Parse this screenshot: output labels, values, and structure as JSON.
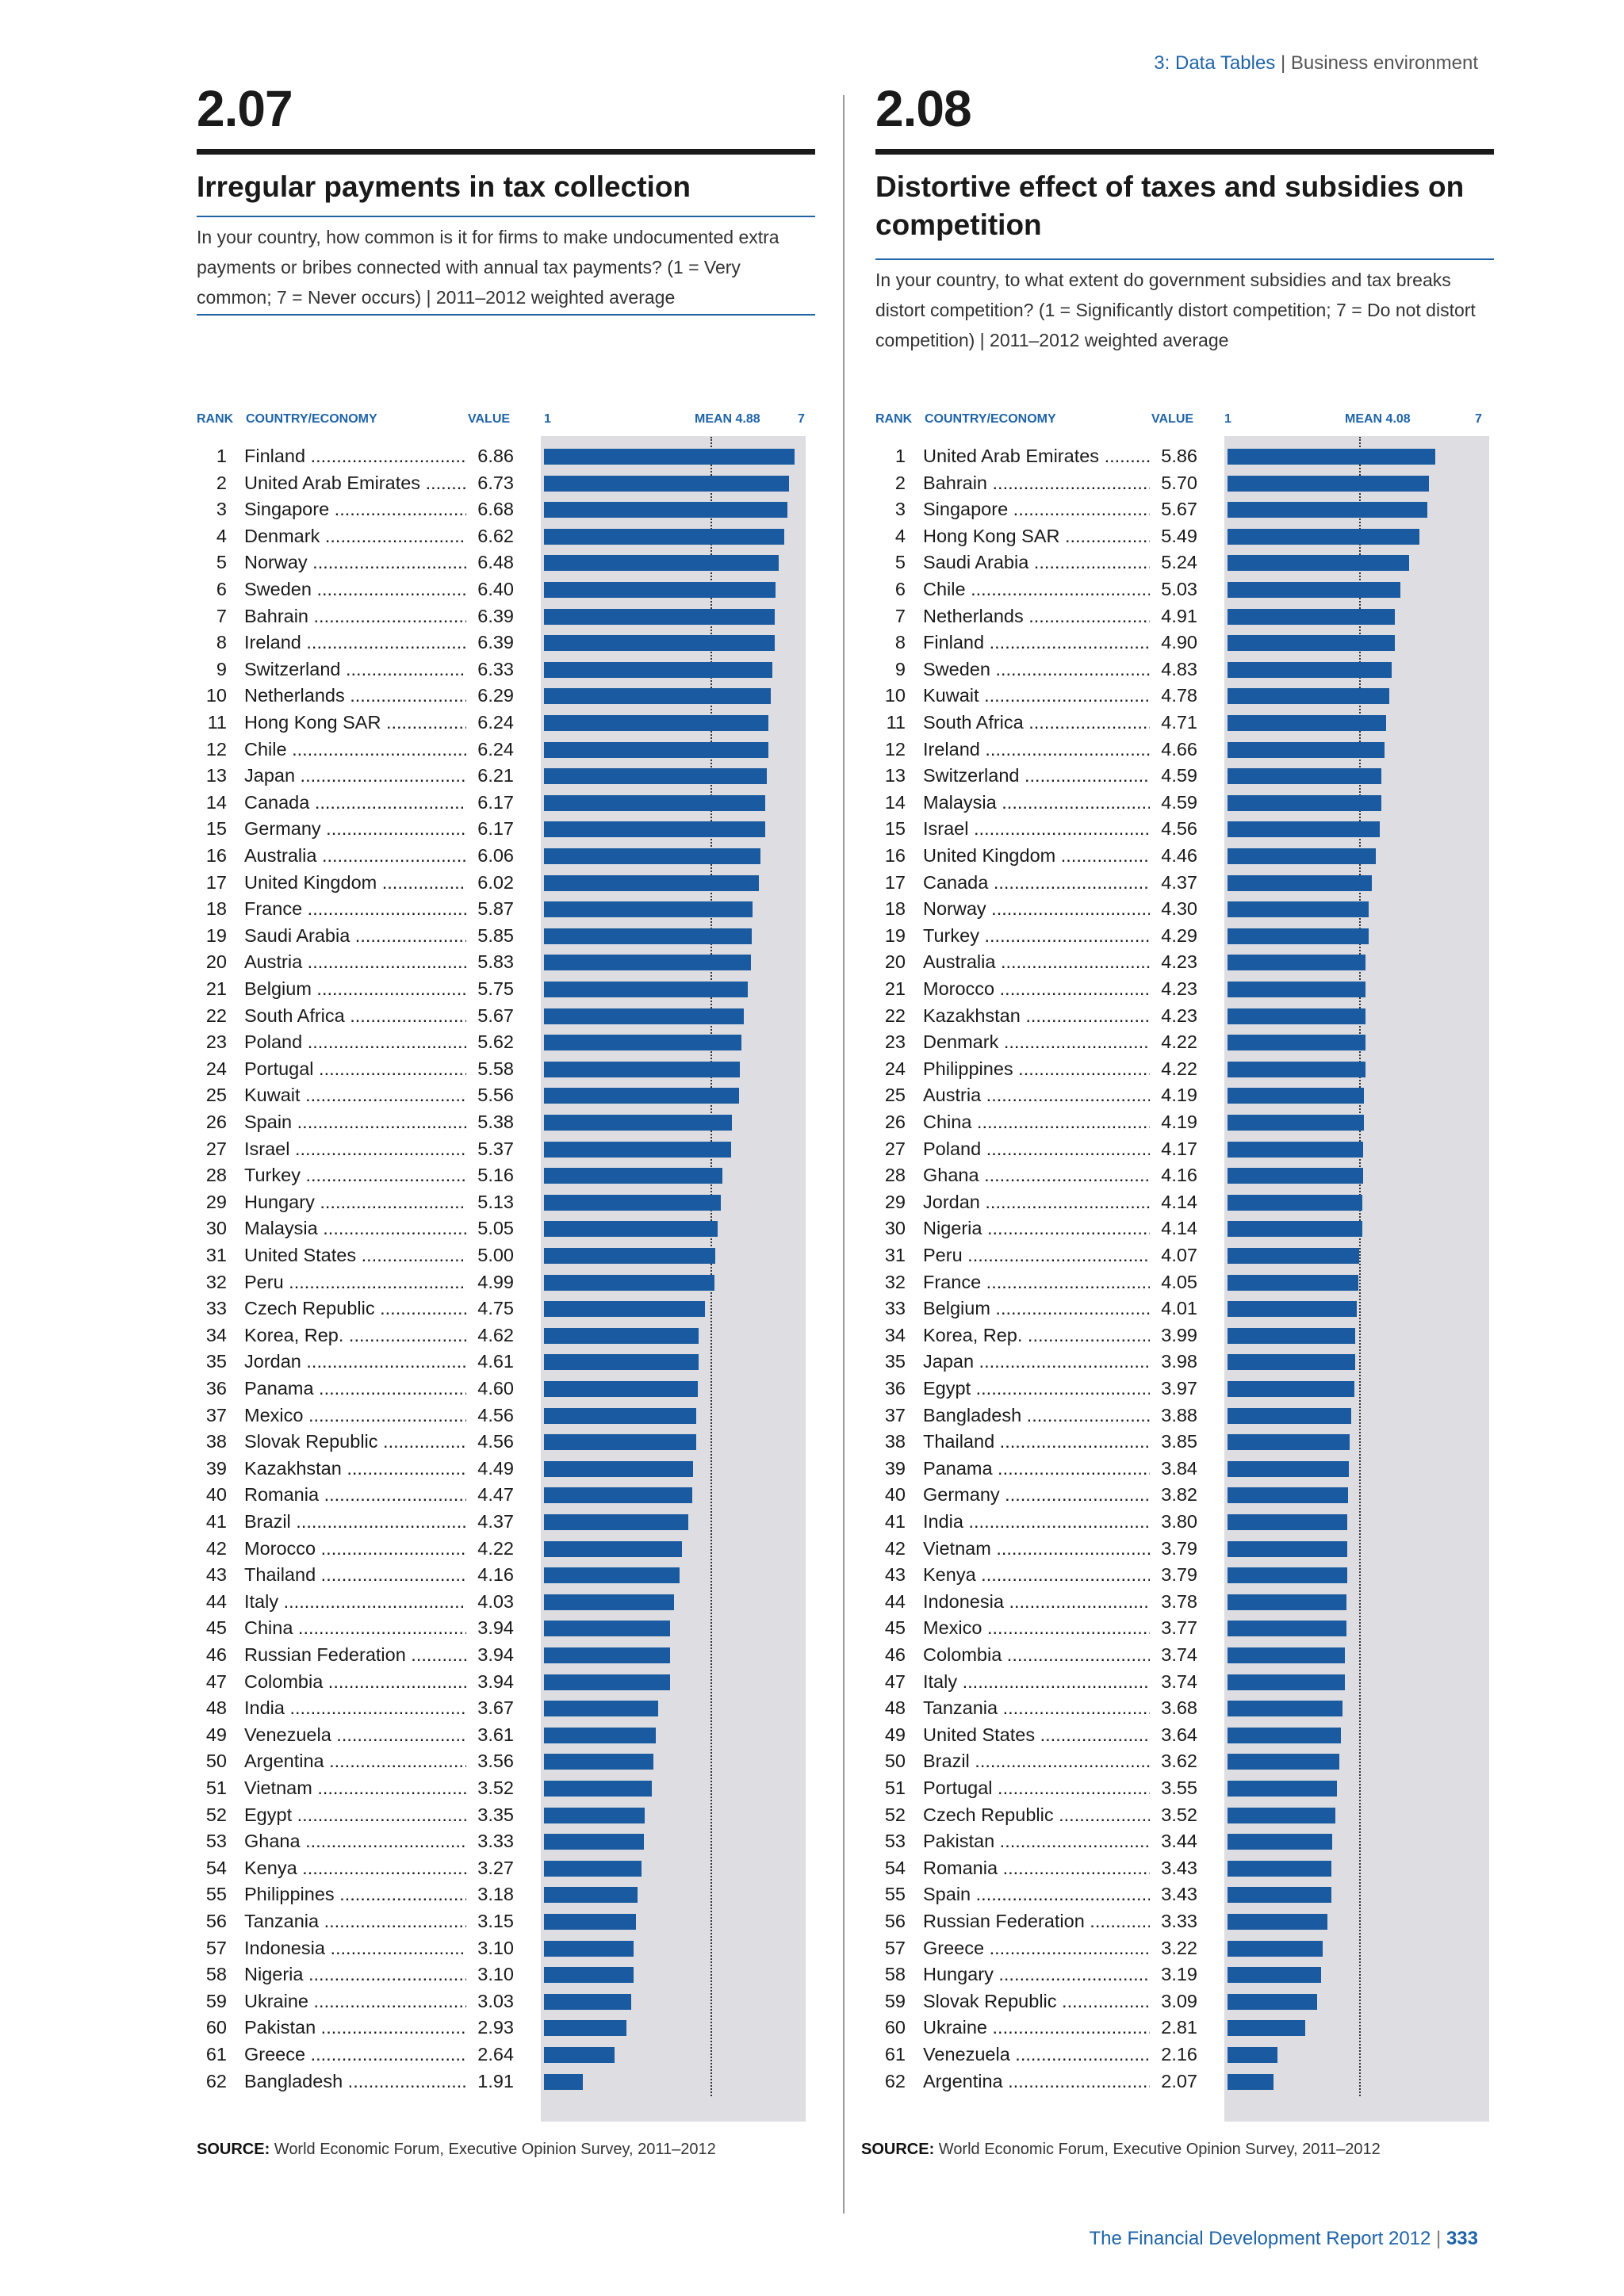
{
  "header": {
    "section": "3: Data Tables",
    "separator": "|",
    "topic": "Business environment"
  },
  "footer": {
    "report": "The Financial Development Report 2012",
    "separator": "|",
    "page": "333"
  },
  "columns": {
    "rank": "RANK",
    "country": "COUNTRY/ECONOMY",
    "value": "VALUE"
  },
  "colors": {
    "bar": "#1a5aa0",
    "accent": "#1f64a8",
    "chart_bg": "#dedee2"
  },
  "panels": [
    {
      "number": "2.07",
      "title": "Irregular payments in tax collection",
      "question": "In your country, how common is it for firms to make undocumented extra payments or bribes connected with annual tax payments? (1 = Very common; 7 = Never occurs) | 2011–2012 weighted average",
      "scale_min_label": "1",
      "mean_label": "MEAN 4.88",
      "scale_max_label": "7",
      "source_label": "SOURCE:",
      "source_text": "World Economic Forum, Executive Opinion Survey, 2011–2012",
      "chart_data": {
        "type": "bar",
        "orientation": "horizontal",
        "xlim": [
          1,
          7
        ],
        "mean": 4.88,
        "ranks": [
          1,
          2,
          3,
          4,
          5,
          6,
          7,
          8,
          9,
          10,
          11,
          12,
          13,
          14,
          15,
          16,
          17,
          18,
          19,
          20,
          21,
          22,
          23,
          24,
          25,
          26,
          27,
          28,
          29,
          30,
          31,
          32,
          33,
          34,
          35,
          36,
          37,
          38,
          39,
          40,
          41,
          42,
          43,
          44,
          45,
          46,
          47,
          48,
          49,
          50,
          51,
          52,
          53,
          54,
          55,
          56,
          57,
          58,
          59,
          60,
          61,
          62
        ],
        "categories": [
          "Finland",
          "United Arab Emirates",
          "Singapore",
          "Denmark",
          "Norway",
          "Sweden",
          "Bahrain",
          "Ireland",
          "Switzerland",
          "Netherlands",
          "Hong Kong SAR",
          "Chile",
          "Japan",
          "Canada",
          "Germany",
          "Australia",
          "United Kingdom",
          "France",
          "Saudi Arabia",
          "Austria",
          "Belgium",
          "South Africa",
          "Poland",
          "Portugal",
          "Kuwait",
          "Spain",
          "Israel",
          "Turkey",
          "Hungary",
          "Malaysia",
          "United States",
          "Peru",
          "Czech Republic",
          "Korea, Rep.",
          "Jordan",
          "Panama",
          "Mexico",
          "Slovak Republic",
          "Kazakhstan",
          "Romania",
          "Brazil",
          "Morocco",
          "Thailand",
          "Italy",
          "China",
          "Russian Federation",
          "Colombia",
          "India",
          "Venezuela",
          "Argentina",
          "Vietnam",
          "Egypt",
          "Ghana",
          "Kenya",
          "Philippines",
          "Tanzania",
          "Indonesia",
          "Nigeria",
          "Ukraine",
          "Pakistan",
          "Greece",
          "Bangladesh"
        ],
        "values": [
          "6.86",
          "6.73",
          "6.68",
          "6.62",
          "6.48",
          "6.40",
          "6.39",
          "6.39",
          "6.33",
          "6.29",
          "6.24",
          "6.24",
          "6.21",
          "6.17",
          "6.17",
          "6.06",
          "6.02",
          "5.87",
          "5.85",
          "5.83",
          "5.75",
          "5.67",
          "5.62",
          "5.58",
          "5.56",
          "5.38",
          "5.37",
          "5.16",
          "5.13",
          "5.05",
          "5.00",
          "4.99",
          "4.75",
          "4.62",
          "4.61",
          "4.60",
          "4.56",
          "4.56",
          "4.49",
          "4.47",
          "4.37",
          "4.22",
          "4.16",
          "4.03",
          "3.94",
          "3.94",
          "3.94",
          "3.67",
          "3.61",
          "3.56",
          "3.52",
          "3.35",
          "3.33",
          "3.27",
          "3.18",
          "3.15",
          "3.10",
          "3.10",
          "3.03",
          "2.93",
          "2.64",
          "1.91"
        ]
      }
    },
    {
      "number": "2.08",
      "title": "Distortive effect of taxes and subsidies on competition",
      "question": "In your country, to what extent do government subsidies and tax breaks distort competition? (1 = Significantly distort competition; 7 = Do not distort competition) | 2011–2012 weighted average",
      "scale_min_label": "1",
      "mean_label": "MEAN 4.08",
      "scale_max_label": "7",
      "source_label": "SOURCE:",
      "source_text": "World Economic Forum, Executive Opinion Survey, 2011–2012",
      "chart_data": {
        "type": "bar",
        "orientation": "horizontal",
        "xlim": [
          1,
          7
        ],
        "mean": 4.08,
        "ranks": [
          1,
          2,
          3,
          4,
          5,
          6,
          7,
          8,
          9,
          10,
          11,
          12,
          13,
          14,
          15,
          16,
          17,
          18,
          19,
          20,
          21,
          22,
          23,
          24,
          25,
          26,
          27,
          28,
          29,
          30,
          31,
          32,
          33,
          34,
          35,
          36,
          37,
          38,
          39,
          40,
          41,
          42,
          43,
          44,
          45,
          46,
          47,
          48,
          49,
          50,
          51,
          52,
          53,
          54,
          55,
          56,
          57,
          58,
          59,
          60,
          61,
          62
        ],
        "categories": [
          "United Arab Emirates",
          "Bahrain",
          "Singapore",
          "Hong Kong SAR",
          "Saudi Arabia",
          "Chile",
          "Netherlands",
          "Finland",
          "Sweden",
          "Kuwait",
          "South Africa",
          "Ireland",
          "Switzerland",
          "Malaysia",
          "Israel",
          "United Kingdom",
          "Canada",
          "Norway",
          "Turkey",
          "Australia",
          "Morocco",
          "Kazakhstan",
          "Denmark",
          "Philippines",
          "Austria",
          "China",
          "Poland",
          "Ghana",
          "Jordan",
          "Nigeria",
          "Peru",
          "France",
          "Belgium",
          "Korea, Rep.",
          "Japan",
          "Egypt",
          "Bangladesh",
          "Thailand",
          "Panama",
          "Germany",
          "India",
          "Vietnam",
          "Kenya",
          "Indonesia",
          "Mexico",
          "Colombia",
          "Italy",
          "Tanzania",
          "United States",
          "Brazil",
          "Portugal",
          "Czech Republic",
          "Pakistan",
          "Romania",
          "Spain",
          "Russian Federation",
          "Greece",
          "Hungary",
          "Slovak Republic",
          "Ukraine",
          "Venezuela",
          "Argentina"
        ],
        "values": [
          "5.86",
          "5.70",
          "5.67",
          "5.49",
          "5.24",
          "5.03",
          "4.91",
          "4.90",
          "4.83",
          "4.78",
          "4.71",
          "4.66",
          "4.59",
          "4.59",
          "4.56",
          "4.46",
          "4.37",
          "4.30",
          "4.29",
          "4.23",
          "4.23",
          "4.23",
          "4.22",
          "4.22",
          "4.19",
          "4.19",
          "4.17",
          "4.16",
          "4.14",
          "4.14",
          "4.07",
          "4.05",
          "4.01",
          "3.99",
          "3.98",
          "3.97",
          "3.88",
          "3.85",
          "3.84",
          "3.82",
          "3.80",
          "3.79",
          "3.79",
          "3.78",
          "3.77",
          "3.74",
          "3.74",
          "3.68",
          "3.64",
          "3.62",
          "3.55",
          "3.52",
          "3.44",
          "3.43",
          "3.43",
          "3.33",
          "3.22",
          "3.19",
          "3.09",
          "2.81",
          "2.16",
          "2.07"
        ]
      }
    }
  ]
}
